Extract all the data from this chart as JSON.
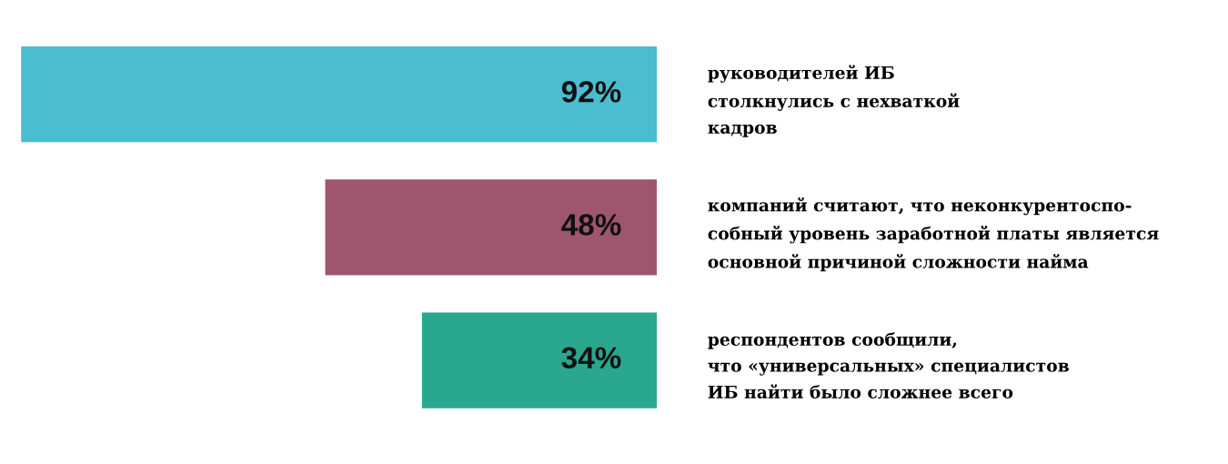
{
  "chart_data": {
    "type": "bar",
    "orientation": "horizontal",
    "tick_labels": "y",
    "grid": false,
    "legend": false,
    "categories": [
      "руководителей ИБ\nстолкнулись с нехваткой\nкадров",
      "компаний считают, что неконкурентоспо-\nсобный уровень заработной платы является\nосновной причиной сложности найма",
      "респондентов сообщили,\nчто «универсальных» специалистов\nИБ найти было сложнее всего"
    ],
    "values": [
      92,
      48,
      34
    ],
    "colors": [
      "#4bbdd0",
      "#9e566e",
      "#29a78f"
    ],
    "value_labels": [
      "92%",
      "48%",
      "34%"
    ]
  }
}
